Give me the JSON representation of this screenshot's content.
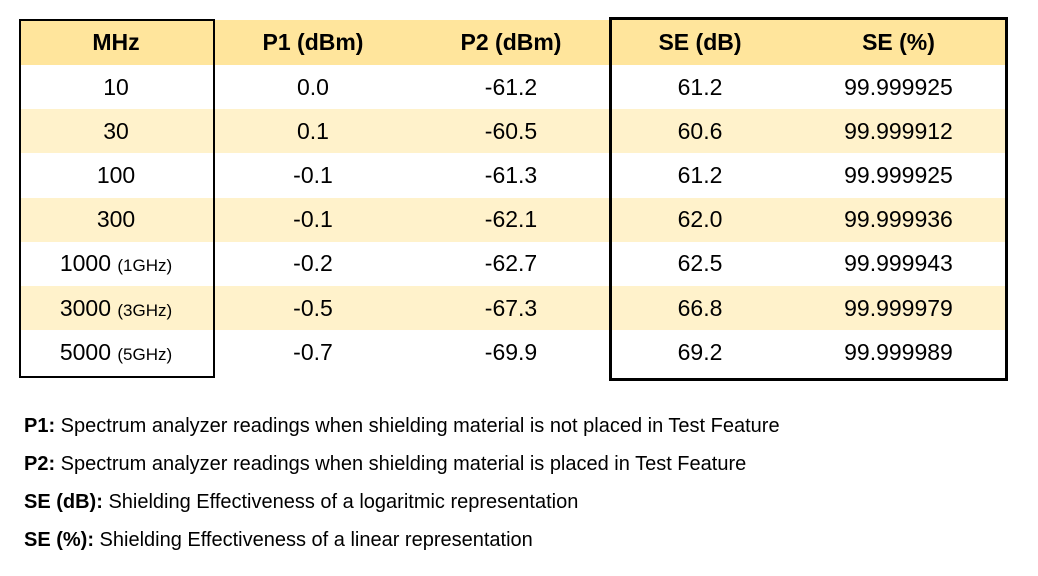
{
  "table": {
    "headers": [
      "MHz",
      "P1 (dBm)",
      "P2 (dBm)",
      "SE (dB)",
      "SE (%)"
    ],
    "rows": [
      {
        "mhz": "10",
        "mhz_note": "",
        "p1": "0.0",
        "p2": "-61.2",
        "se_db": "61.2",
        "se_pct": "99.999925"
      },
      {
        "mhz": "30",
        "mhz_note": "",
        "p1": "0.1",
        "p2": "-60.5",
        "se_db": "60.6",
        "se_pct": "99.999912"
      },
      {
        "mhz": "100",
        "mhz_note": "",
        "p1": "-0.1",
        "p2": "-61.3",
        "se_db": "61.2",
        "se_pct": "99.999925"
      },
      {
        "mhz": "300",
        "mhz_note": "",
        "p1": "-0.1",
        "p2": "-62.1",
        "se_db": "62.0",
        "se_pct": "99.999936"
      },
      {
        "mhz": "1000",
        "mhz_note": "(1GHz)",
        "p1": "-0.2",
        "p2": "-62.7",
        "se_db": "62.5",
        "se_pct": "99.999943"
      },
      {
        "mhz": "3000",
        "mhz_note": "(3GHz)",
        "p1": "-0.5",
        "p2": "-67.3",
        "se_db": "66.8",
        "se_pct": "99.999979"
      },
      {
        "mhz": "5000",
        "mhz_note": "(5GHz)",
        "p1": "-0.7",
        "p2": "-69.9",
        "se_db": "69.2",
        "se_pct": "99.999989"
      }
    ],
    "colors": {
      "header": "#FFE59C",
      "alt_row": "#FFF2CB",
      "border": "#000000"
    }
  },
  "notes": [
    {
      "term": "P1:",
      "text": " Spectrum analyzer readings when shielding material is not placed in Test Feature"
    },
    {
      "term": "P2:",
      "text": " Spectrum analyzer readings when shielding material is placed in Test Feature"
    },
    {
      "term": "SE (dB):",
      "text": " Shielding Effectiveness of a logaritmic representation"
    },
    {
      "term": "SE (%):",
      "text": " Shielding Effectiveness of a linear representation"
    }
  ]
}
